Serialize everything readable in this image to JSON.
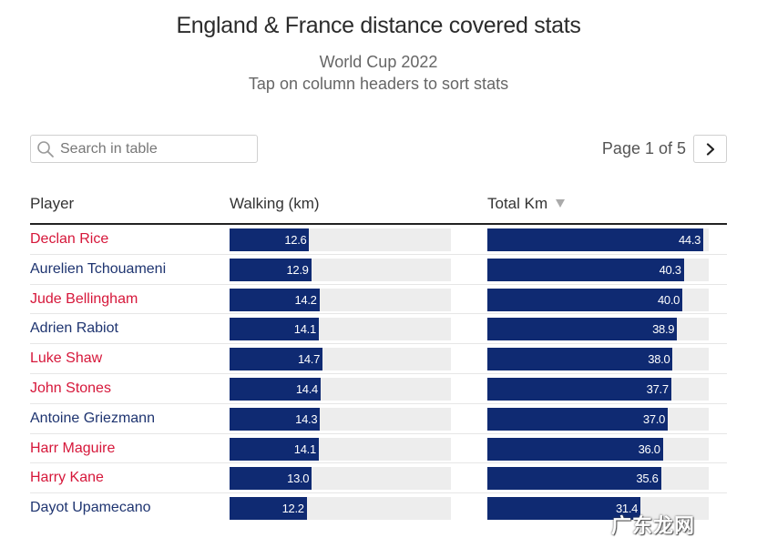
{
  "header": {
    "title": "England & France distance covered stats",
    "subtitle_line1": "World Cup 2022",
    "subtitle_line2": "Tap on column headers to sort stats"
  },
  "search": {
    "placeholder": "Search in table",
    "value": ""
  },
  "pager": {
    "text": "Page 1 of 5",
    "next_icon": "chevron-right-icon"
  },
  "columns": {
    "player": "Player",
    "walking": "Walking (km)",
    "total": "Total Km",
    "sorted_by": "total",
    "sort_direction": "descending"
  },
  "scale": {
    "walking_max": 35.0,
    "total_max": 45.4
  },
  "colors": {
    "england": "#d6173a",
    "france": "#1e3470",
    "bar": "#0f2a72",
    "track": "#ededed"
  },
  "rows": [
    {
      "player": "Declan Rice",
      "team": "england",
      "walking": "12.6",
      "total": "44.3"
    },
    {
      "player": "Aurelien Tchouameni",
      "team": "france",
      "walking": "12.9",
      "total": "40.3"
    },
    {
      "player": "Jude Bellingham",
      "team": "england",
      "walking": "14.2",
      "total": "40.0"
    },
    {
      "player": "Adrien Rabiot",
      "team": "france",
      "walking": "14.1",
      "total": "38.9"
    },
    {
      "player": "Luke Shaw",
      "team": "england",
      "walking": "14.7",
      "total": "38.0"
    },
    {
      "player": "John Stones",
      "team": "england",
      "walking": "14.4",
      "total": "37.7"
    },
    {
      "player": "Antoine Griezmann",
      "team": "france",
      "walking": "14.3",
      "total": "37.0"
    },
    {
      "player": "Harr Maguire",
      "team": "england",
      "walking": "14.1",
      "total": "36.0"
    },
    {
      "player": "Harry Kane",
      "team": "england",
      "walking": "13.0",
      "total": "35.6"
    },
    {
      "player": "Dayot Upamecano",
      "team": "france",
      "walking": "12.2",
      "total": "31.4"
    }
  ],
  "watermark": "广东龙网"
}
